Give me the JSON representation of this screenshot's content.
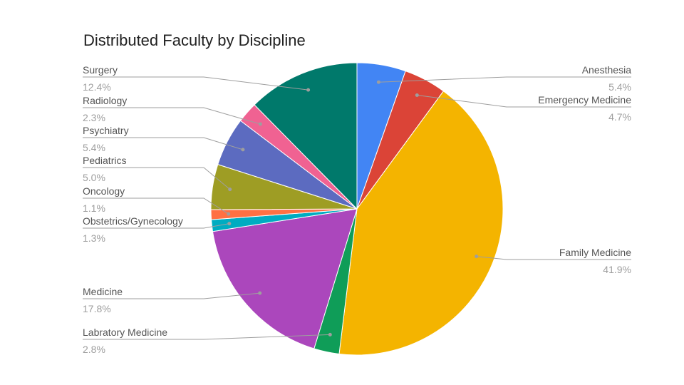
{
  "chart_data": {
    "type": "pie",
    "title": "Distributed Faculty by Discipline",
    "start_angle_deg": 0,
    "direction": "clockwise",
    "legend": "labels-with-leader-lines",
    "slices": [
      {
        "label": "Anesthesia",
        "value": 5.4,
        "value_label": "5.4%",
        "color": "#4285F4",
        "side": "right"
      },
      {
        "label": "Emergency Medicine",
        "value": 4.7,
        "value_label": "4.7%",
        "color": "#DB4437",
        "side": "right"
      },
      {
        "label": "Family Medicine",
        "value": 41.9,
        "value_label": "41.9%",
        "color": "#F4B400",
        "side": "right"
      },
      {
        "label": "Labratory Medicine",
        "value": 2.8,
        "value_label": "2.8%",
        "color": "#0F9D58",
        "side": "left"
      },
      {
        "label": "Medicine",
        "value": 17.8,
        "value_label": "17.8%",
        "color": "#AB47BC",
        "side": "left"
      },
      {
        "label": "Obstetrics/Gynecology",
        "value": 1.3,
        "value_label": "1.3%",
        "color": "#00ACC1",
        "side": "left"
      },
      {
        "label": "Oncology",
        "value": 1.1,
        "value_label": "1.1%",
        "color": "#FF7043",
        "side": "left"
      },
      {
        "label": "Pediatrics",
        "value": 5.0,
        "value_label": "5.0%",
        "color": "#9E9D24",
        "side": "left"
      },
      {
        "label": "Psychiatry",
        "value": 5.4,
        "value_label": "5.4%",
        "color": "#5C6BC0",
        "side": "left"
      },
      {
        "label": "Radiology",
        "value": 2.3,
        "value_label": "2.3%",
        "color": "#F06292",
        "side": "left"
      },
      {
        "label": "Surgery",
        "value": 12.4,
        "value_label": "12.4%",
        "color": "#00796B",
        "side": "left"
      }
    ]
  }
}
